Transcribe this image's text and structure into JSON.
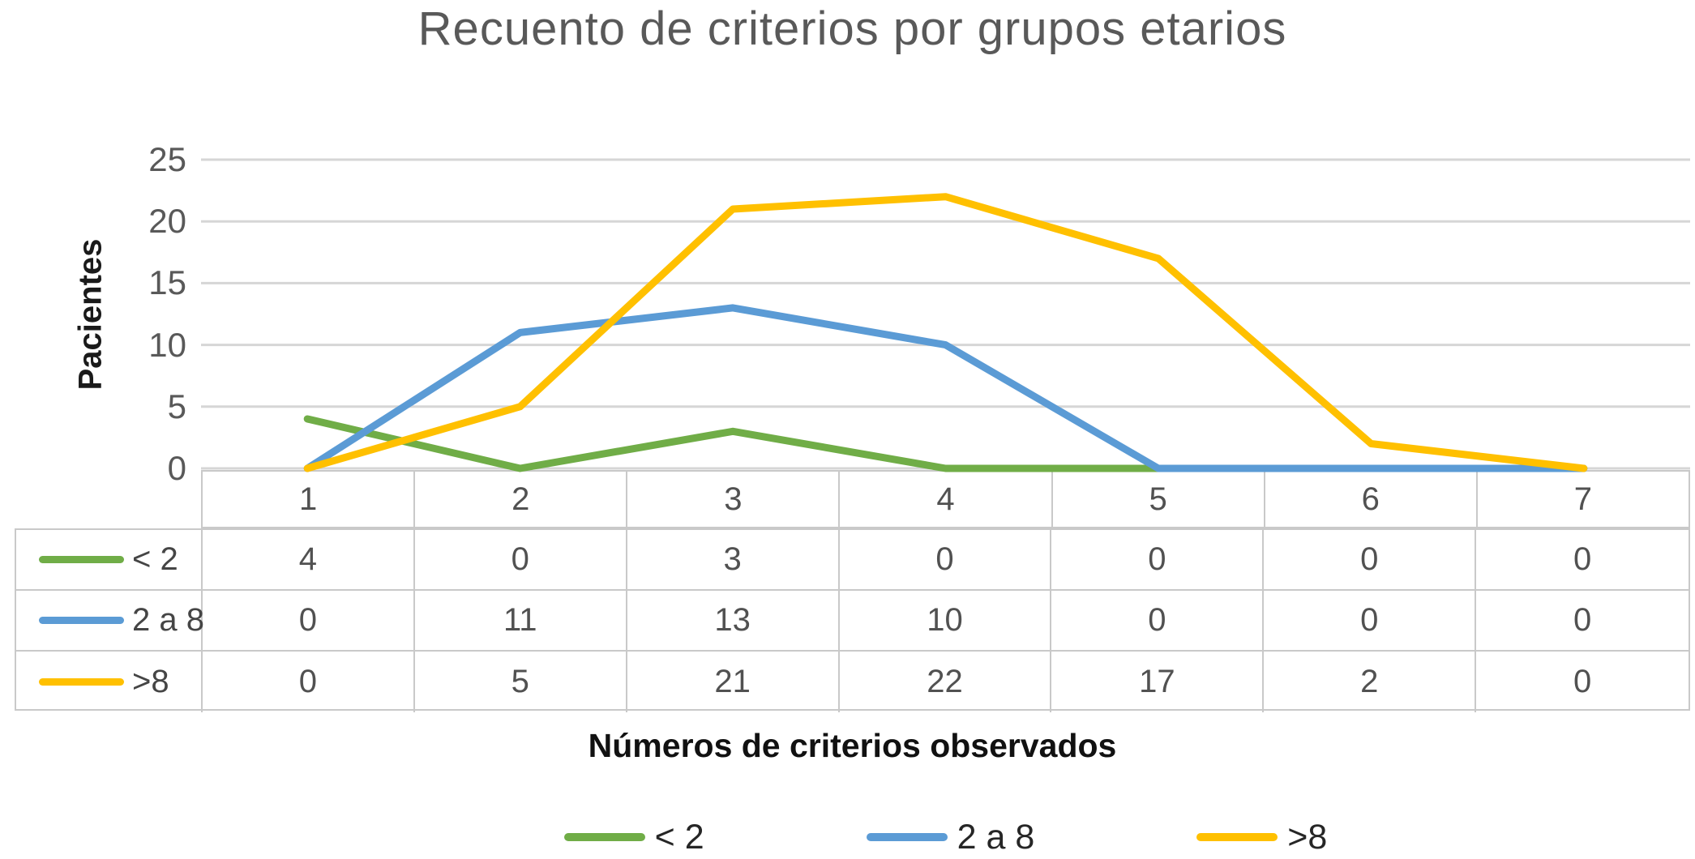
{
  "title": "Recuento de criterios por grupos etarios",
  "y_axis": {
    "label": "Pacientes",
    "ticks": [
      25,
      20,
      15,
      10,
      5,
      0
    ]
  },
  "x_axis": {
    "label": "Números de criterios observados"
  },
  "chart_data": {
    "type": "line",
    "title": "Recuento de criterios por grupos etarios",
    "xlabel": "Números de criterios observados",
    "ylabel": "Pacientes",
    "categories": [
      1,
      2,
      3,
      4,
      5,
      6,
      7
    ],
    "series": [
      {
        "name": "< 2",
        "color": "#70AD47",
        "values": [
          4,
          0,
          3,
          0,
          0,
          0,
          0
        ]
      },
      {
        "name": "2 a 8",
        "color": "#5B9BD5",
        "values": [
          0,
          11,
          13,
          10,
          0,
          0,
          0
        ]
      },
      {
        "name": ">8",
        "color": "#FFC000",
        "values": [
          0,
          5,
          21,
          22,
          17,
          2,
          0
        ]
      }
    ],
    "ylim": [
      0,
      25
    ],
    "ytick_step": 5,
    "grid": true,
    "gridline_color": "#d6d6d6",
    "legend_position": "bottom",
    "data_table_shown": true
  },
  "colors": {
    "title_text": "#595959",
    "tick_text": "#595959",
    "table_text": "#515151",
    "table_border": "#c9c9c9"
  }
}
